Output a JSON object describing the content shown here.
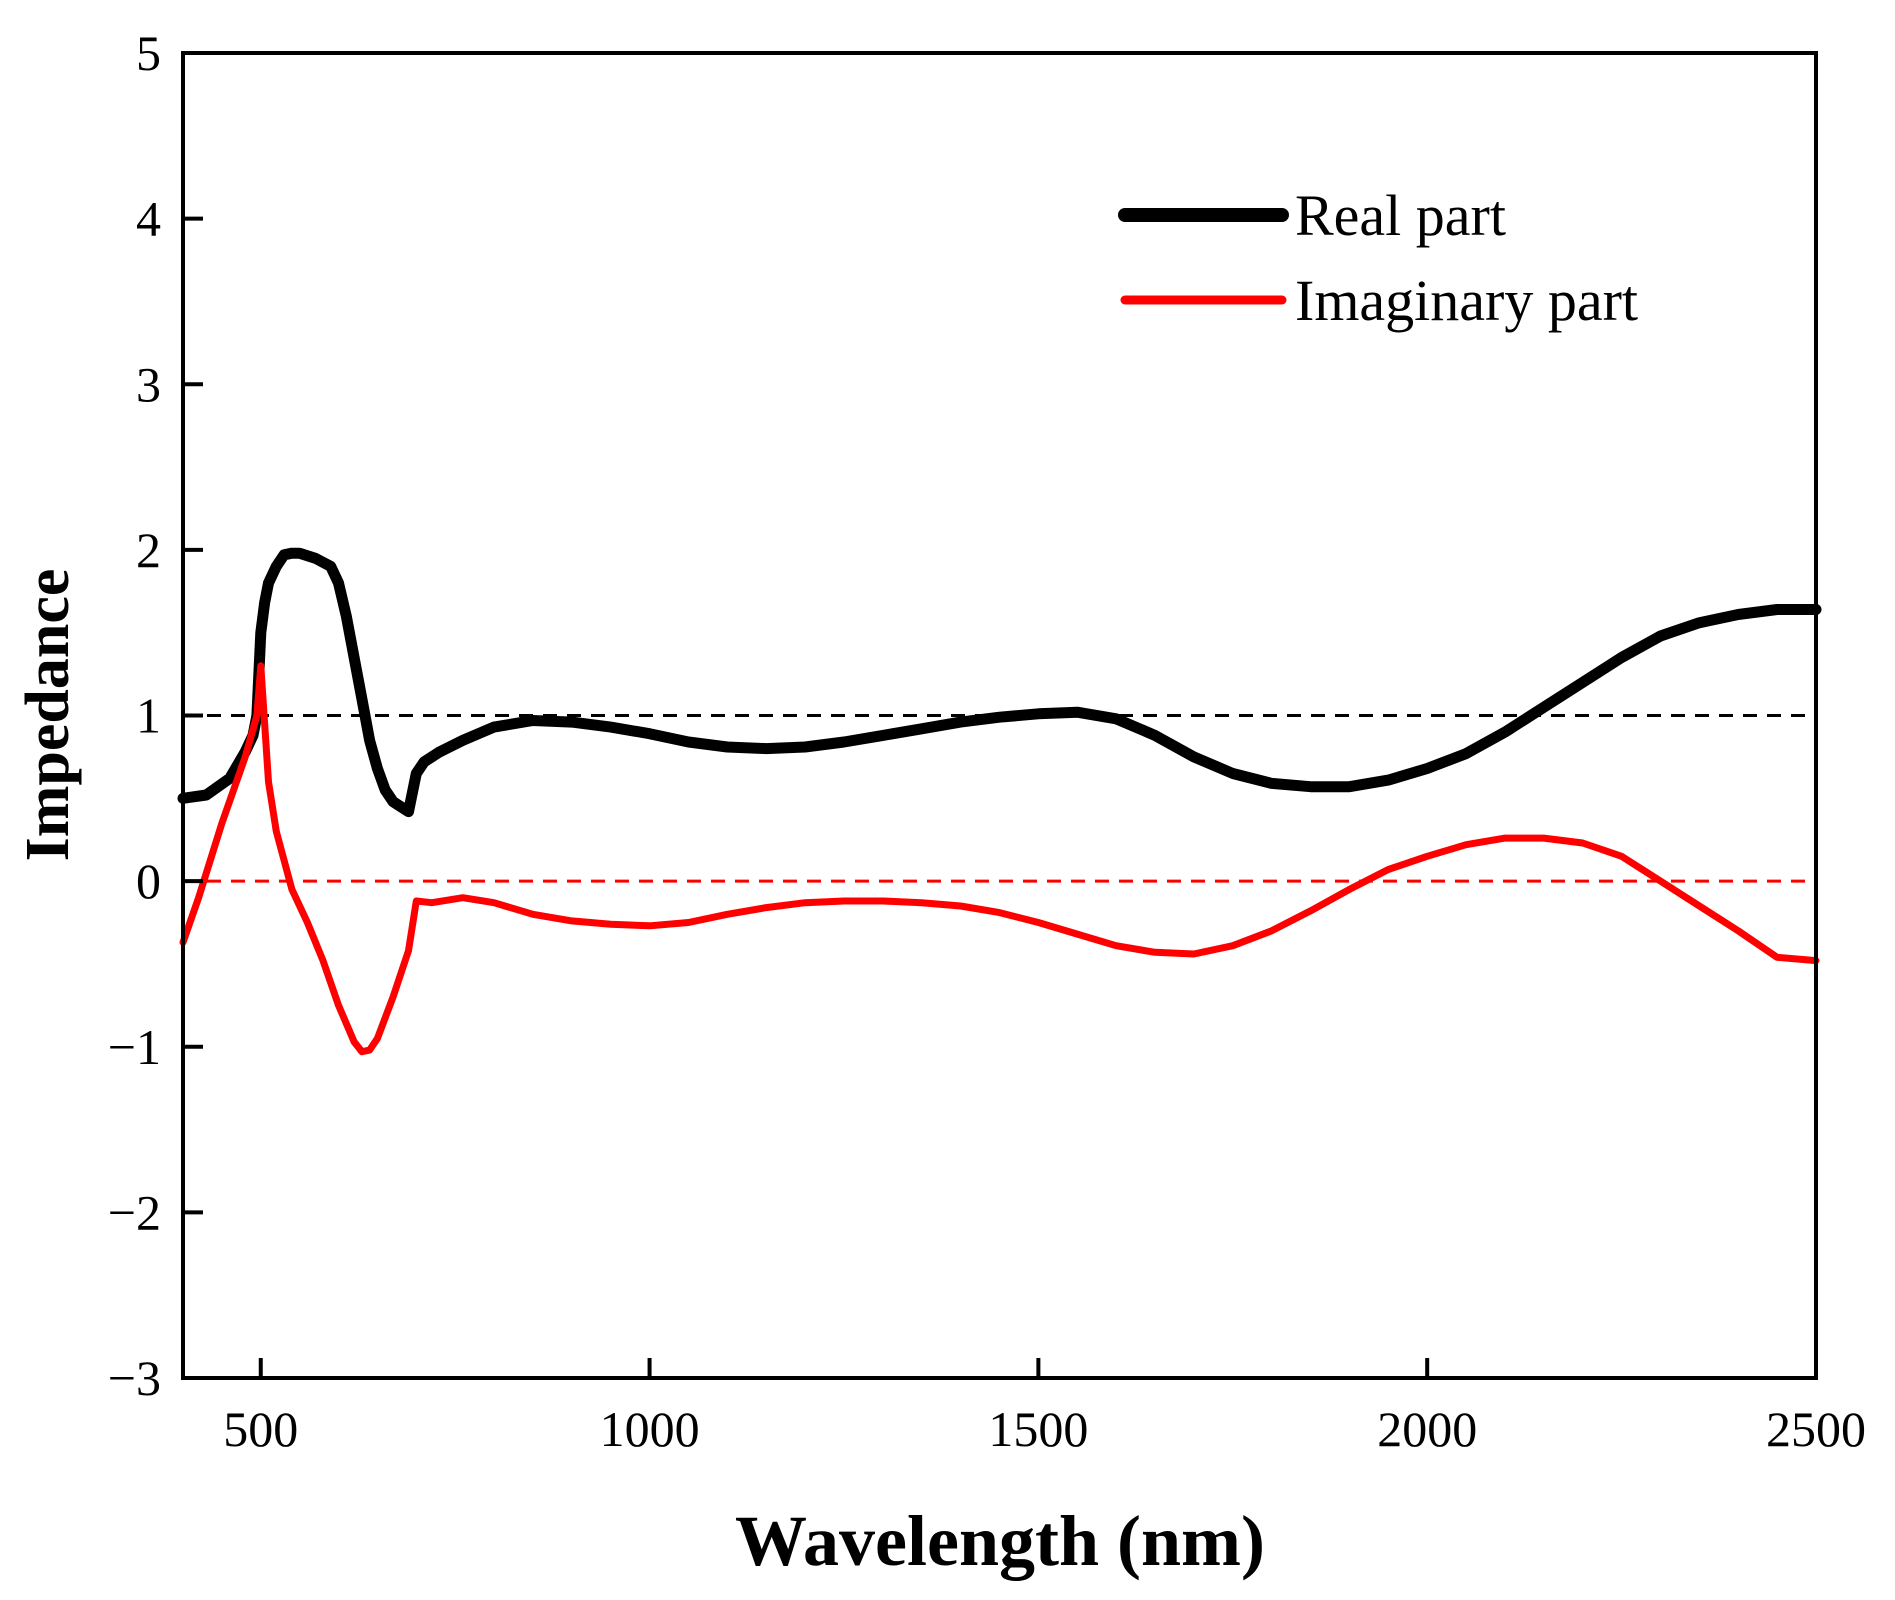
{
  "chart_data": {
    "type": "line",
    "title": "",
    "xlabel": "Wavelength (nm)",
    "ylabel": "Impedance",
    "xlim": [
      400,
      2500
    ],
    "ylim": [
      -3,
      5
    ],
    "xticks": [
      500,
      1000,
      1500,
      2000,
      2500
    ],
    "yticks": [
      -3,
      -2,
      -1,
      0,
      1,
      2,
      3,
      4,
      5
    ],
    "xtick_labels": [
      "500",
      "1000",
      "1500",
      "2000",
      "2500"
    ],
    "ytick_labels": [
      "−3",
      "−2",
      "−1",
      "0",
      "1",
      "2",
      "3",
      "4",
      "5"
    ],
    "grid": false,
    "legend_position": "top-right",
    "reference_lines": [
      {
        "name": "real-reference",
        "y": 1,
        "color": "#000000",
        "style": "dashed"
      },
      {
        "name": "imaginary-reference",
        "y": 0,
        "color": "#ff0000",
        "style": "dashed"
      }
    ],
    "series": [
      {
        "name": "Real part",
        "color": "#000000",
        "x": [
          400,
          430,
          460,
          480,
          490,
          495,
          500,
          505,
          510,
          520,
          530,
          540,
          550,
          570,
          590,
          600,
          610,
          620,
          630,
          640,
          650,
          660,
          670,
          680,
          690,
          700,
          710,
          730,
          760,
          800,
          850,
          900,
          950,
          1000,
          1050,
          1100,
          1150,
          1200,
          1250,
          1300,
          1350,
          1400,
          1450,
          1500,
          1550,
          1600,
          1650,
          1700,
          1750,
          1800,
          1850,
          1900,
          1950,
          2000,
          2050,
          2100,
          2150,
          2200,
          2250,
          2300,
          2350,
          2400,
          2450,
          2500
        ],
        "values": [
          0.5,
          0.52,
          0.62,
          0.78,
          0.88,
          1.0,
          1.5,
          1.68,
          1.8,
          1.9,
          1.97,
          1.98,
          1.98,
          1.95,
          1.9,
          1.8,
          1.6,
          1.35,
          1.1,
          0.85,
          0.68,
          0.55,
          0.48,
          0.45,
          0.42,
          0.65,
          0.72,
          0.78,
          0.85,
          0.93,
          0.97,
          0.96,
          0.93,
          0.89,
          0.84,
          0.81,
          0.8,
          0.81,
          0.84,
          0.88,
          0.92,
          0.96,
          0.99,
          1.01,
          1.02,
          0.98,
          0.88,
          0.75,
          0.65,
          0.59,
          0.57,
          0.57,
          0.61,
          0.68,
          0.77,
          0.9,
          1.05,
          1.2,
          1.35,
          1.48,
          1.56,
          1.61,
          1.64,
          1.64
        ]
      },
      {
        "name": "Imaginary part",
        "color": "#ff0000",
        "x": [
          400,
          420,
          450,
          480,
          495,
          500,
          510,
          520,
          540,
          560,
          580,
          600,
          620,
          630,
          640,
          650,
          670,
          690,
          700,
          720,
          760,
          800,
          850,
          900,
          950,
          1000,
          1050,
          1100,
          1150,
          1200,
          1250,
          1300,
          1350,
          1400,
          1450,
          1500,
          1550,
          1600,
          1650,
          1700,
          1750,
          1800,
          1850,
          1900,
          1950,
          2000,
          2050,
          2100,
          2150,
          2200,
          2250,
          2300,
          2350,
          2400,
          2450,
          2500
        ],
        "values": [
          -0.37,
          -0.1,
          0.35,
          0.75,
          1.0,
          1.3,
          0.6,
          0.3,
          -0.05,
          -0.25,
          -0.48,
          -0.75,
          -0.97,
          -1.03,
          -1.02,
          -0.95,
          -0.7,
          -0.42,
          -0.12,
          -0.13,
          -0.1,
          -0.13,
          -0.2,
          -0.24,
          -0.26,
          -0.27,
          -0.25,
          -0.2,
          -0.16,
          -0.13,
          -0.12,
          -0.12,
          -0.13,
          -0.15,
          -0.19,
          -0.25,
          -0.32,
          -0.39,
          -0.43,
          -0.44,
          -0.39,
          -0.3,
          -0.18,
          -0.05,
          0.07,
          0.15,
          0.22,
          0.26,
          0.26,
          0.23,
          0.15,
          0.0,
          -0.15,
          -0.3,
          -0.46,
          -0.48
        ]
      }
    ]
  }
}
